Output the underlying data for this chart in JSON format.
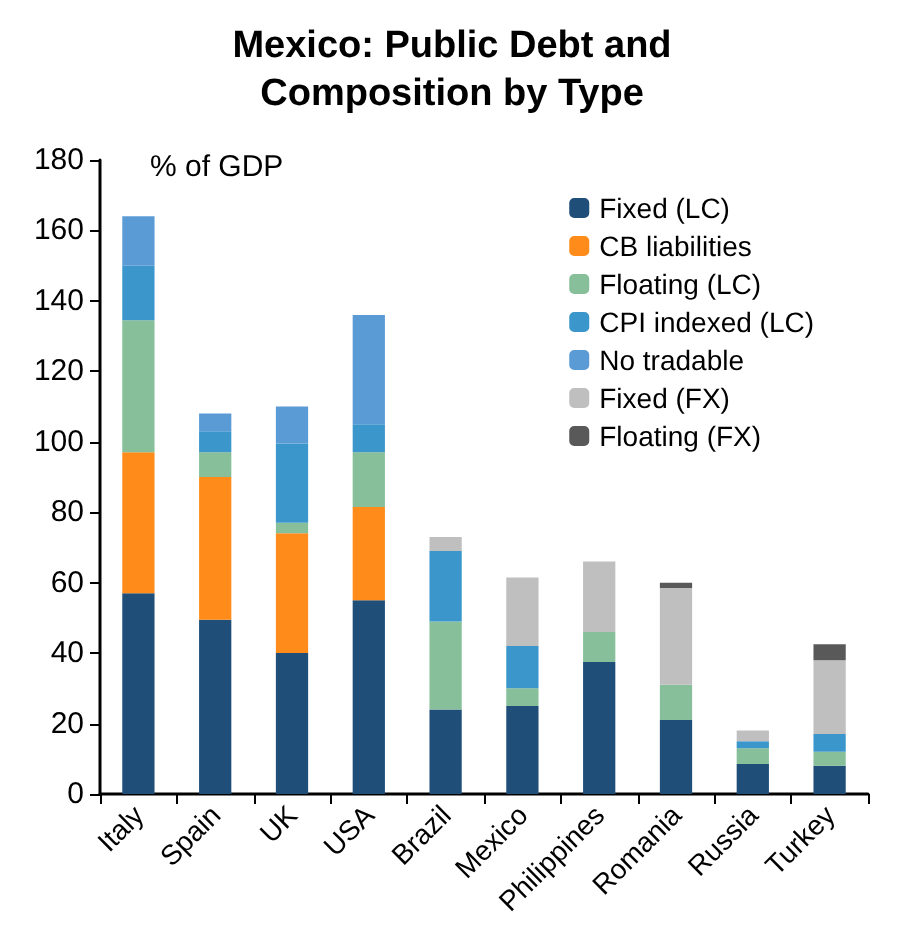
{
  "chart_data": {
    "type": "bar",
    "title": "Mexico: Public Debt and\nComposition by Type",
    "ylabel": "% of GDP",
    "categories": [
      "Italy",
      "Spain",
      "UK",
      "USA",
      "Brazil",
      "Mexico",
      "Philippines",
      "Romania",
      "Russia",
      "Turkey"
    ],
    "stacked": true,
    "legend": "top right",
    "grid": false,
    "ylim": [
      0,
      180
    ],
    "yticks": [
      0,
      20,
      40,
      60,
      80,
      100,
      120,
      140,
      160,
      180
    ],
    "series": [
      {
        "name": "Fixed (LC)",
        "color": "#1f4e79",
        "values": [
          57,
          49.5,
          40,
          55,
          24,
          25,
          37.5,
          21,
          8.5,
          8
        ]
      },
      {
        "name": "CB liabilities",
        "color": "#ff8c1a",
        "values": [
          40,
          40.5,
          34,
          26.5,
          0,
          0,
          0,
          0,
          0,
          0
        ]
      },
      {
        "name": "Floating (LC)",
        "color": "#86bf9a",
        "values": [
          37.5,
          7,
          3,
          15.5,
          25,
          5,
          8.5,
          10,
          4.5,
          4
        ]
      },
      {
        "name": "CPI indexed (LC)",
        "color": "#3b97cb",
        "values": [
          15.5,
          6,
          22.5,
          8,
          20,
          12,
          0,
          0,
          2,
          5
        ]
      },
      {
        "name": "No tradable",
        "color": "#5b9bd5",
        "values": [
          14,
          5,
          10.5,
          31,
          0,
          0,
          0,
          0,
          0,
          0
        ]
      },
      {
        "name": "Fixed (FX)",
        "color": "#bfbfbf",
        "values": [
          0,
          0,
          0,
          0,
          4,
          19.5,
          20,
          27.5,
          3,
          21
        ]
      },
      {
        "name": "Floating (FX)",
        "color": "#595959",
        "values": [
          0,
          0,
          0,
          0,
          0,
          0,
          0,
          1.5,
          0,
          4.5
        ]
      }
    ]
  }
}
